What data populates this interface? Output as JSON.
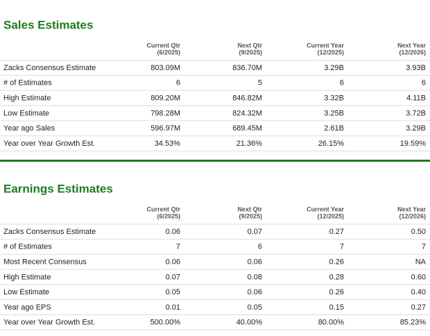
{
  "sections": [
    {
      "title": "Sales Estimates",
      "columns": [
        {
          "label": "Current Qtr",
          "period": "(6/2025)"
        },
        {
          "label": "Next Qtr",
          "period": "(9/2025)"
        },
        {
          "label": "Current Year",
          "period": "(12/2025)"
        },
        {
          "label": "Next Year",
          "period": "(12/2026)"
        }
      ],
      "rows": [
        [
          "Zacks Consensus Estimate",
          "803.09M",
          "836.70M",
          "3.29B",
          "3.93B"
        ],
        [
          "# of Estimates",
          "6",
          "5",
          "6",
          "6"
        ],
        [
          "High Estimate",
          "809.20M",
          "846.82M",
          "3.32B",
          "4.11B"
        ],
        [
          "Low Estimate",
          "798.28M",
          "824.32M",
          "3.25B",
          "3.72B"
        ],
        [
          "Year ago Sales",
          "596.97M",
          "689.45M",
          "2.61B",
          "3.29B"
        ],
        [
          "Year over Year Growth Est.",
          "34.53%",
          "21.36%",
          "26.15%",
          "19.59%"
        ]
      ]
    },
    {
      "title": "Earnings Estimates",
      "columns": [
        {
          "label": "Current Qtr",
          "period": "(6/2025)"
        },
        {
          "label": "Next Qtr",
          "period": "(9/2025)"
        },
        {
          "label": "Current Year",
          "period": "(12/2025)"
        },
        {
          "label": "Next Year",
          "period": "(12/2026)"
        }
      ],
      "rows": [
        [
          "Zacks Consensus Estimate",
          "0.06",
          "0.07",
          "0.27",
          "0.50"
        ],
        [
          "# of Estimates",
          "7",
          "6",
          "7",
          "7"
        ],
        [
          "Most Recent Consensus",
          "0.06",
          "0.06",
          "0.26",
          "NA"
        ],
        [
          "High Estimate",
          "0.07",
          "0.08",
          "0.28",
          "0.60"
        ],
        [
          "Low Estimate",
          "0.05",
          "0.06",
          "0.26",
          "0.40"
        ],
        [
          "Year ago EPS",
          "0.01",
          "0.05",
          "0.15",
          "0.27"
        ],
        [
          "Year over Year Growth Est.",
          "500.00%",
          "40.00%",
          "80.00%",
          "85.23%"
        ]
      ]
    }
  ]
}
